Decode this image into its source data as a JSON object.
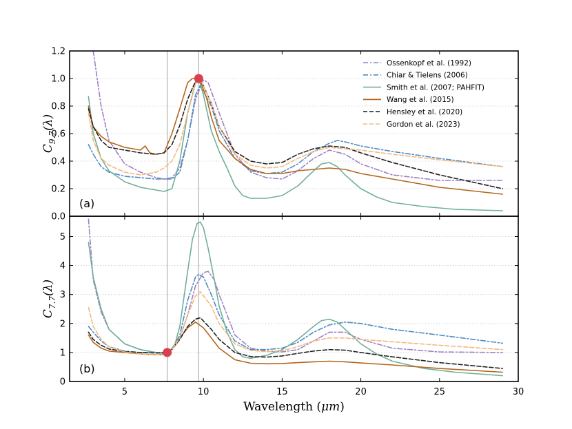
{
  "chart_data": {
    "type": "line",
    "xlabel": "Wavelength (μm)",
    "xlim": [
      1.5,
      30
    ],
    "xticks": [
      5,
      10,
      15,
      20,
      25,
      30
    ],
    "grid": "horizontal dotted",
    "vlines": [
      7.7,
      9.7
    ],
    "colors": {
      "ossenkopf": "#9e7fc6",
      "chiar": "#4a8bc2",
      "smith": "#6faf97",
      "wang": "#b5651d",
      "hensley": "#222222",
      "gordon": "#f4b87d"
    },
    "panels": [
      {
        "label": "(a)",
        "ylabel": "C9.7(λ)",
        "ylim": [
          0,
          1.2
        ],
        "yticks": [
          "0.0",
          "0.2",
          "0.4",
          "0.6",
          "0.8",
          "1.0",
          "1.2"
        ],
        "legend": "top-right",
        "marker": {
          "x": 9.7,
          "y": 1.0,
          "color": "#d9404f"
        },
        "series": [
          {
            "key": "ossenkopf",
            "name": "Ossenkopf et al. (1992)",
            "dash": "dashdot",
            "x": [
              3.0,
              3.5,
              4.0,
              5.0,
              6.0,
              7.0,
              7.5,
              8.0,
              8.5,
              9.0,
              9.5,
              10.0,
              10.3,
              11.0,
              12.0,
              13.0,
              14.0,
              15.0,
              16.0,
              17.0,
              18.0,
              19.0,
              20.0,
              22.0,
              25.0,
              29.0
            ],
            "y": [
              1.2,
              0.8,
              0.55,
              0.38,
              0.32,
              0.28,
              0.27,
              0.28,
              0.35,
              0.55,
              0.85,
              0.99,
              0.97,
              0.75,
              0.45,
              0.32,
              0.28,
              0.27,
              0.33,
              0.42,
              0.48,
              0.45,
              0.38,
              0.3,
              0.26,
              0.26
            ]
          },
          {
            "key": "chiar",
            "name": "Chiar & Tielens (2006)",
            "dash": "dashdot",
            "x": [
              2.7,
              3.0,
              3.5,
              4.0,
              5.0,
              6.0,
              7.0,
              8.0,
              8.5,
              9.0,
              9.5,
              9.8,
              10.5,
              11.0,
              12.0,
              13.0,
              14.0,
              15.0,
              16.0,
              17.0,
              18.0,
              18.5,
              19.0,
              20.0,
              22.0,
              25.0,
              29.0
            ],
            "y": [
              0.52,
              0.45,
              0.36,
              0.32,
              0.29,
              0.28,
              0.27,
              0.27,
              0.32,
              0.55,
              0.88,
              0.95,
              0.8,
              0.62,
              0.42,
              0.33,
              0.31,
              0.32,
              0.38,
              0.47,
              0.53,
              0.55,
              0.54,
              0.51,
              0.47,
              0.42,
              0.36
            ]
          },
          {
            "key": "smith",
            "name": "Smith et al. (2007; PAHFIT)",
            "dash": "solid",
            "x": [
              2.7,
              3.0,
              3.5,
              4.0,
              5.0,
              6.0,
              7.0,
              7.5,
              8.0,
              8.5,
              9.0,
              9.5,
              9.7,
              10.0,
              10.5,
              11.0,
              11.5,
              12.0,
              12.5,
              13.0,
              14.0,
              15.0,
              16.0,
              17.0,
              17.5,
              18.0,
              18.5,
              19.0,
              20.0,
              21.0,
              22.0,
              24.0,
              26.0,
              29.0
            ],
            "y": [
              0.87,
              0.6,
              0.42,
              0.33,
              0.25,
              0.21,
              0.19,
              0.18,
              0.2,
              0.4,
              0.75,
              0.97,
              1.0,
              0.88,
              0.62,
              0.47,
              0.35,
              0.22,
              0.15,
              0.13,
              0.13,
              0.15,
              0.22,
              0.33,
              0.38,
              0.39,
              0.36,
              0.3,
              0.2,
              0.14,
              0.1,
              0.07,
              0.05,
              0.04
            ]
          },
          {
            "key": "wang",
            "name": "Wang et al. (2015)",
            "dash": "solid",
            "x": [
              2.7,
              3.0,
              3.5,
              4.0,
              5.0,
              6.0,
              6.3,
              6.6,
              7.0,
              7.5,
              8.0,
              8.5,
              9.0,
              9.3,
              9.6,
              9.8,
              10.2,
              10.5,
              11.0,
              12.0,
              13.0,
              14.0,
              15.0,
              16.0,
              17.0,
              18.0,
              19.0,
              20.0,
              22.0,
              25.0,
              29.0
            ],
            "y": [
              0.8,
              0.65,
              0.58,
              0.54,
              0.5,
              0.48,
              0.51,
              0.46,
              0.45,
              0.46,
              0.6,
              0.78,
              0.97,
              1.0,
              1.0,
              0.98,
              0.86,
              0.72,
              0.55,
              0.42,
              0.34,
              0.31,
              0.31,
              0.33,
              0.34,
              0.35,
              0.34,
              0.31,
              0.27,
              0.21,
              0.16
            ]
          },
          {
            "key": "hensley",
            "name": "Hensley et al. (2020)",
            "dash": "dashed",
            "x": [
              2.7,
              3.0,
              3.5,
              4.0,
              5.0,
              6.0,
              7.0,
              7.5,
              8.0,
              8.5,
              9.0,
              9.5,
              9.8,
              10.5,
              11.0,
              12.0,
              13.0,
              14.0,
              15.0,
              16.0,
              17.0,
              18.0,
              19.0,
              20.0,
              22.0,
              25.0,
              29.0
            ],
            "y": [
              0.78,
              0.65,
              0.55,
              0.5,
              0.48,
              0.46,
              0.45,
              0.46,
              0.52,
              0.66,
              0.85,
              0.98,
              1.0,
              0.82,
              0.65,
              0.47,
              0.4,
              0.38,
              0.39,
              0.45,
              0.49,
              0.51,
              0.5,
              0.46,
              0.39,
              0.3,
              0.2
            ]
          },
          {
            "key": "gordon",
            "name": "Gordon et al. (2023)",
            "dash": "dashed",
            "x": [
              2.7,
              3.0,
              3.5,
              4.0,
              5.0,
              6.0,
              7.0,
              7.5,
              8.0,
              8.5,
              9.0,
              9.5,
              9.8,
              10.5,
              11.0,
              12.0,
              13.0,
              14.0,
              15.0,
              16.0,
              17.0,
              18.0,
              19.0,
              20.0,
              22.0,
              25.0,
              29.0
            ],
            "y": [
              0.75,
              0.55,
              0.42,
              0.37,
              0.32,
              0.3,
              0.32,
              0.35,
              0.4,
              0.52,
              0.75,
              0.96,
              1.0,
              0.82,
              0.65,
              0.45,
              0.37,
              0.35,
              0.36,
              0.42,
              0.47,
              0.5,
              0.49,
              0.48,
              0.45,
              0.41,
              0.36
            ]
          }
        ]
      },
      {
        "label": "(b)",
        "ylabel": "C7.7(λ)",
        "ylim": [
          0,
          5.7
        ],
        "yticks": [
          "0",
          "1",
          "2",
          "3",
          "4",
          "5"
        ],
        "marker": {
          "x": 7.7,
          "y": 1.0,
          "color": "#d9404f"
        },
        "series": [
          {
            "key": "ossenkopf",
            "dash": "dashdot",
            "x": [
              2.7,
              3.0,
              3.5,
              4.0,
              5.0,
              6.0,
              7.0,
              7.5,
              8.0,
              8.5,
              9.0,
              9.5,
              10.0,
              10.3,
              10.7,
              11.0,
              12.0,
              13.0,
              14.0,
              15.0,
              16.0,
              17.0,
              18.0,
              19.0,
              20.0,
              22.0,
              25.0,
              29.0
            ],
            "y": [
              5.6,
              3.5,
              2.4,
              1.8,
              1.3,
              1.1,
              1.0,
              1.0,
              1.1,
              1.5,
              2.3,
              3.3,
              3.75,
              3.8,
              3.5,
              3.0,
              1.6,
              1.15,
              1.05,
              1.02,
              1.1,
              1.4,
              1.7,
              1.7,
              1.45,
              1.15,
              1.02,
              1.0
            ]
          },
          {
            "key": "chiar",
            "dash": "dashdot",
            "x": [
              2.7,
              3.0,
              3.5,
              4.0,
              5.0,
              6.0,
              7.0,
              7.5,
              8.0,
              8.5,
              9.0,
              9.5,
              9.7,
              10.0,
              10.5,
              11.0,
              12.0,
              13.0,
              14.0,
              15.0,
              16.0,
              17.0,
              18.0,
              19.0,
              20.0,
              22.0,
              25.0,
              29.0
            ],
            "y": [
              1.9,
              1.7,
              1.4,
              1.2,
              1.05,
              1.0,
              1.0,
              1.0,
              1.1,
              1.6,
              2.8,
              3.6,
              3.7,
              3.6,
              3.0,
              2.3,
              1.4,
              1.1,
              1.1,
              1.15,
              1.35,
              1.7,
              1.95,
              2.05,
              2.0,
              1.8,
              1.6,
              1.32
            ]
          },
          {
            "key": "smith",
            "dash": "solid",
            "x": [
              2.7,
              3.0,
              3.5,
              4.0,
              5.0,
              6.0,
              7.0,
              7.5,
              7.8,
              8.2,
              8.5,
              9.0,
              9.3,
              9.6,
              9.8,
              10.0,
              10.3,
              10.7,
              11.0,
              11.5,
              12.0,
              12.5,
              13.0,
              14.0,
              15.0,
              16.0,
              17.0,
              17.5,
              18.0,
              18.5,
              19.0,
              20.0,
              21.0,
              22.0,
              24.0,
              26.0,
              29.0
            ],
            "y": [
              4.8,
              3.6,
              2.5,
              1.8,
              1.3,
              1.1,
              1.0,
              0.97,
              1.0,
              1.3,
              1.9,
              3.8,
              4.9,
              5.45,
              5.5,
              5.3,
              4.6,
              3.5,
              2.6,
              1.7,
              1.1,
              0.85,
              0.8,
              0.9,
              1.1,
              1.45,
              1.9,
              2.1,
              2.15,
              2.05,
              1.8,
              1.3,
              0.95,
              0.7,
              0.45,
              0.32,
              0.2
            ]
          },
          {
            "key": "wang",
            "dash": "solid",
            "x": [
              2.7,
              3.0,
              3.5,
              4.0,
              5.0,
              6.0,
              7.0,
              7.5,
              8.0,
              8.5,
              9.0,
              9.5,
              10.0,
              10.5,
              11.0,
              12.0,
              13.0,
              14.0,
              15.0,
              16.0,
              17.0,
              18.0,
              19.0,
              20.0,
              22.0,
              25.0,
              29.0
            ],
            "y": [
              1.6,
              1.35,
              1.15,
              1.05,
              1.0,
              0.95,
              0.92,
              0.93,
              1.1,
              1.5,
              1.85,
              2.05,
              1.85,
              1.5,
              1.15,
              0.75,
              0.63,
              0.61,
              0.62,
              0.65,
              0.68,
              0.7,
              0.68,
              0.64,
              0.57,
              0.45,
              0.32
            ]
          },
          {
            "key": "hensley",
            "dash": "dashed",
            "x": [
              2.7,
              3.0,
              3.5,
              4.0,
              5.0,
              6.0,
              7.0,
              7.5,
              8.0,
              8.5,
              9.0,
              9.5,
              9.8,
              10.5,
              11.0,
              12.0,
              13.0,
              14.0,
              15.0,
              16.0,
              17.0,
              18.0,
              19.0,
              20.0,
              22.0,
              25.0,
              29.0
            ],
            "y": [
              1.7,
              1.45,
              1.25,
              1.12,
              1.03,
              1.0,
              0.98,
              0.99,
              1.1,
              1.45,
              1.9,
              2.15,
              2.2,
              1.8,
              1.45,
              1.0,
              0.86,
              0.84,
              0.88,
              0.97,
              1.05,
              1.1,
              1.08,
              1.0,
              0.85,
              0.65,
              0.45
            ]
          },
          {
            "key": "gordon",
            "dash": "dashed",
            "x": [
              2.7,
              3.0,
              3.5,
              4.0,
              5.0,
              6.0,
              7.0,
              7.5,
              8.0,
              8.5,
              9.0,
              9.5,
              9.8,
              10.5,
              11.0,
              12.0,
              13.0,
              14.0,
              15.0,
              16.0,
              17.0,
              18.0,
              19.0,
              20.0,
              22.0,
              25.0,
              29.0
            ],
            "y": [
              2.55,
              1.9,
              1.45,
              1.2,
              1.02,
              0.95,
              0.92,
              0.95,
              1.1,
              1.5,
              2.3,
              2.95,
              3.1,
              2.6,
              2.0,
              1.3,
              1.07,
              1.03,
              1.06,
              1.2,
              1.4,
              1.5,
              1.5,
              1.45,
              1.37,
              1.25,
              1.1
            ]
          }
        ]
      }
    ]
  }
}
